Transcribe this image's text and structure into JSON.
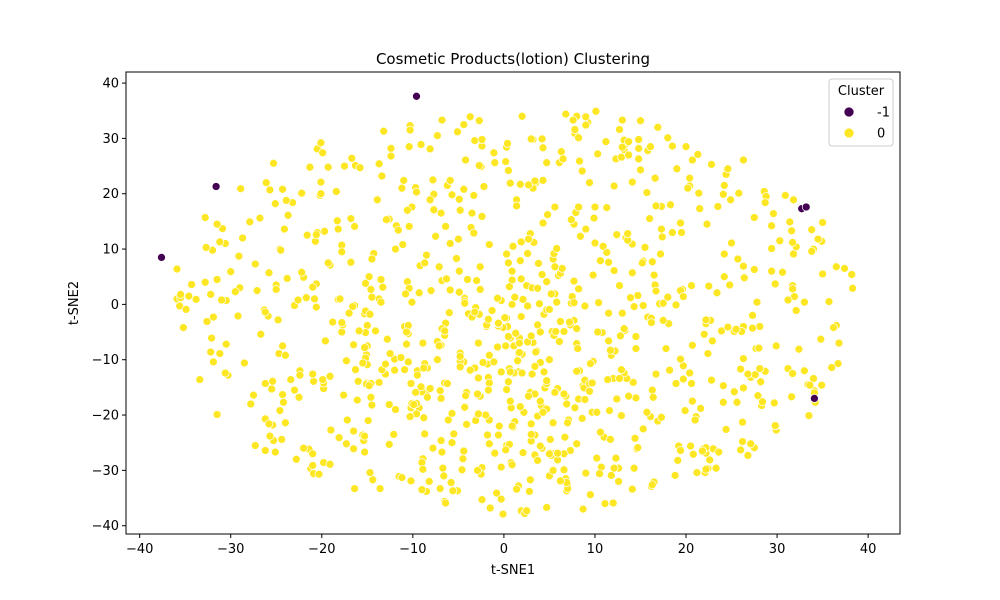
{
  "chart_data": {
    "type": "scatter",
    "title": "Cosmetic Products(lotion) Clustering",
    "xlabel": "t-SNE1",
    "ylabel": "t-SNE2",
    "xlim": [
      -41.5,
      43.5
    ],
    "ylim": [
      -41.5,
      42
    ],
    "xticks": [
      -40,
      -30,
      -20,
      -10,
      0,
      10,
      20,
      30,
      40
    ],
    "yticks": [
      -40,
      -30,
      -20,
      -10,
      0,
      10,
      20,
      30,
      40
    ],
    "grid": false,
    "legend": {
      "title": "Cluster",
      "position": "top-right"
    },
    "series": [
      {
        "name": "-1",
        "color": "#440154",
        "points": [
          [
            -9.6,
            37.6
          ],
          [
            -31.6,
            21.3
          ],
          [
            -37.6,
            8.5
          ],
          [
            32.7,
            17.3
          ],
          [
            33.2,
            17.6
          ],
          [
            34.1,
            -17.0
          ]
        ]
      },
      {
        "name": "0",
        "color": "#fde725",
        "generated": true,
        "count": 950,
        "seed": 7
      }
    ]
  }
}
